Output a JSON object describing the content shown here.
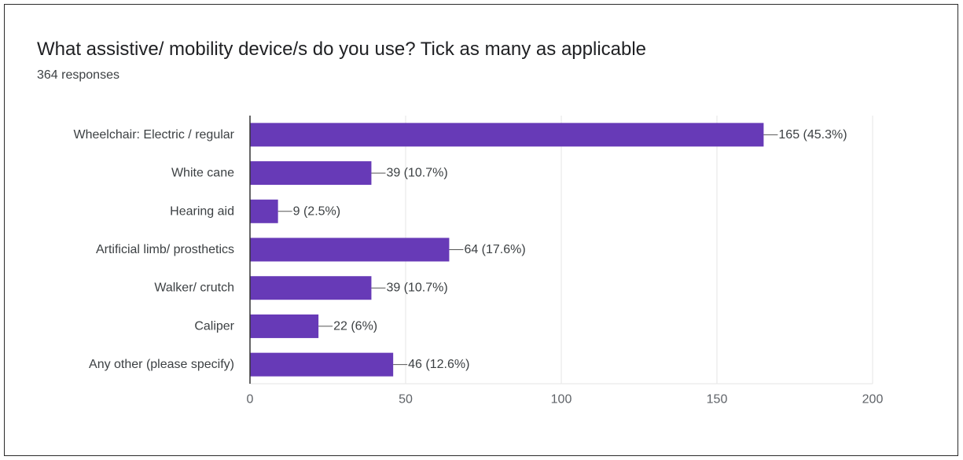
{
  "colors": {
    "bar": "#673ab7",
    "gridline": "#e6e6e6",
    "axis": "#333333",
    "text": "#3c4043"
  },
  "chart_data": {
    "type": "bar",
    "orientation": "horizontal",
    "title": "What assistive/ mobility device/s do you use? Tick as many as applicable",
    "subtitle": "364 responses",
    "categories": [
      "Wheelchair: Electric / regular",
      "White cane",
      "Hearing aid",
      "Artificial limb/ prosthetics",
      "Walker/ crutch",
      "Caliper",
      "Any other (please specify)"
    ],
    "values": [
      165,
      39,
      9,
      64,
      39,
      22,
      46
    ],
    "data_labels": [
      "165 (45.3%)",
      "39 (10.7%)",
      "9 (2.5%)",
      "64 (17.6%)",
      "39 (10.7%)",
      "22 (6%)",
      "46 (12.6%)"
    ],
    "xlim": [
      0,
      200
    ],
    "xticks": [
      0,
      50,
      100,
      150,
      200
    ],
    "grid": true,
    "legend": "none"
  }
}
